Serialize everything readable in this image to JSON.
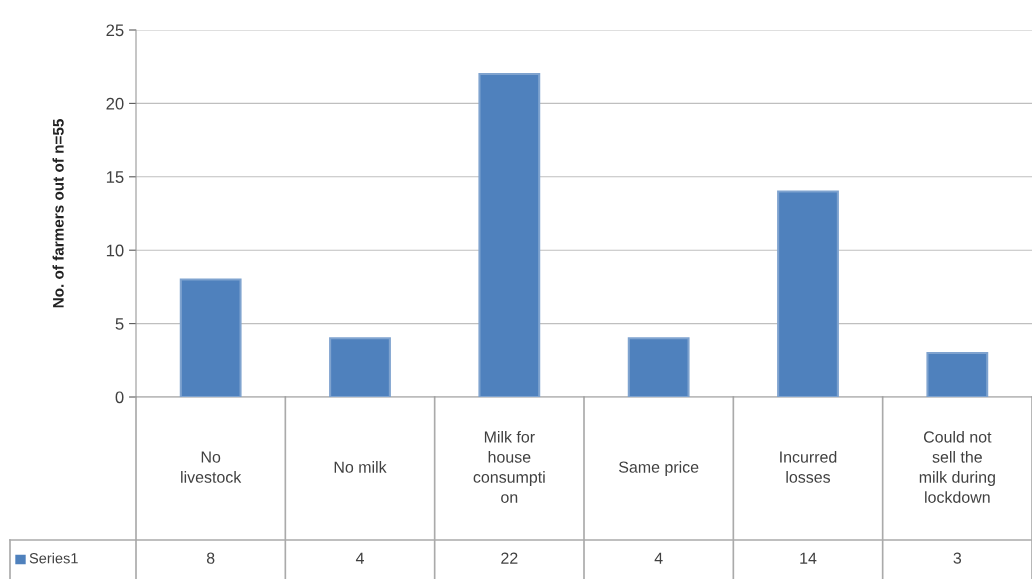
{
  "chart_data": {
    "type": "bar",
    "ylabel": "No. of farmers out of n=55",
    "categories": [
      "No\nlivestock",
      "No milk",
      "Milk for\nhouse\nconsumpti\non",
      "Same price",
      "Incurred\nlosses",
      "Could not\nsell the\nmilk during\nlockdown"
    ],
    "series": [
      {
        "name": "Series1",
        "color": "#4f81bd",
        "values": [
          8,
          4,
          22,
          4,
          14,
          3
        ]
      }
    ],
    "ylim": [
      0,
      25
    ],
    "yticks": [
      0,
      5,
      10,
      15,
      20,
      25
    ],
    "grid": "y",
    "data_labels": true,
    "legend": "bottom left"
  }
}
